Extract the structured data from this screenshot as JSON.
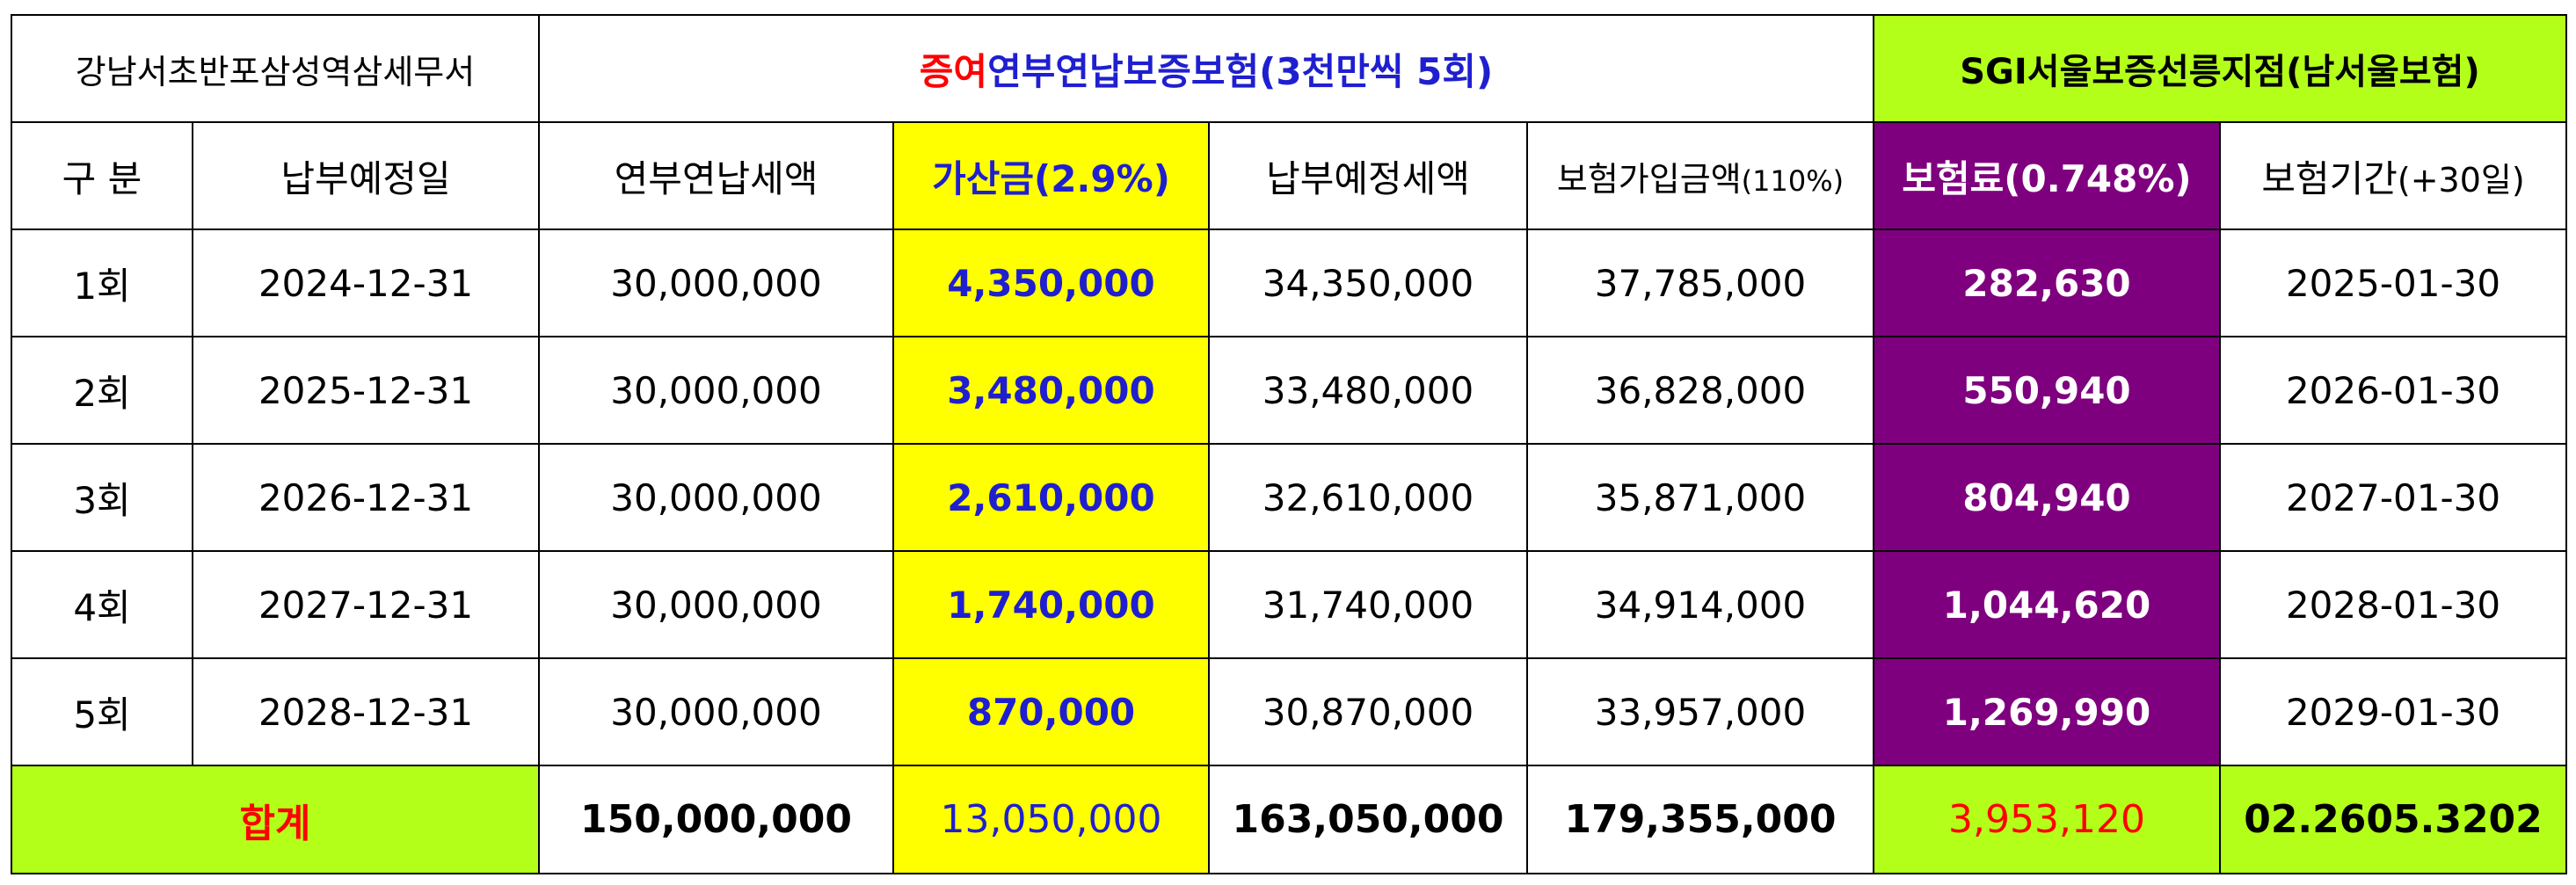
{
  "title": {
    "office": "강남서초반포삼성역삼세무서",
    "main_red": "증여",
    "main_blue": "연부연납보증보험(3천만씩 5회)",
    "agent": "SGI서울보증선릉지점(남서울보험)"
  },
  "headers": {
    "category": "구 분",
    "due_date": "납부예정일",
    "installment_tax": "연부연납세액",
    "surcharge": "가산금(2.9%)",
    "expected_tax": "납부예정세액",
    "insured_amount_main": "보험가입금액",
    "insured_amount_sub": "(110%)",
    "premium": "보험료(0.748%)",
    "period_main": "보험기간",
    "period_sub": "(+30일)"
  },
  "rows": [
    {
      "round": "1회",
      "due": "2024-12-31",
      "tax": "30,000,000",
      "surcharge": "4,350,000",
      "expected": "34,350,000",
      "insured": "37,785,000",
      "premium": "282,630",
      "end": "2025-01-30"
    },
    {
      "round": "2회",
      "due": "2025-12-31",
      "tax": "30,000,000",
      "surcharge": "3,480,000",
      "expected": "33,480,000",
      "insured": "36,828,000",
      "premium": "550,940",
      "end": "2026-01-30"
    },
    {
      "round": "3회",
      "due": "2026-12-31",
      "tax": "30,000,000",
      "surcharge": "2,610,000",
      "expected": "32,610,000",
      "insured": "35,871,000",
      "premium": "804,940",
      "end": "2027-01-30"
    },
    {
      "round": "4회",
      "due": "2027-12-31",
      "tax": "30,000,000",
      "surcharge": "1,740,000",
      "expected": "31,740,000",
      "insured": "34,914,000",
      "premium": "1,044,620",
      "end": "2028-01-30"
    },
    {
      "round": "5회",
      "due": "2028-12-31",
      "tax": "30,000,000",
      "surcharge": "870,000",
      "expected": "30,870,000",
      "insured": "33,957,000",
      "premium": "1,269,990",
      "end": "2029-01-30"
    }
  ],
  "total": {
    "label": "합계",
    "tax": "150,000,000",
    "surcharge": "13,050,000",
    "expected": "163,050,000",
    "insured": "179,355,000",
    "premium": "3,953,120",
    "phone": "02.2605.3202"
  },
  "colors": {
    "surcharge_column": "#ffff00",
    "premium_column": "#7f007f",
    "agent_and_total": "#b3ff1a",
    "emphasis_red": "#ff0000",
    "emphasis_blue": "#1f1fd0"
  }
}
